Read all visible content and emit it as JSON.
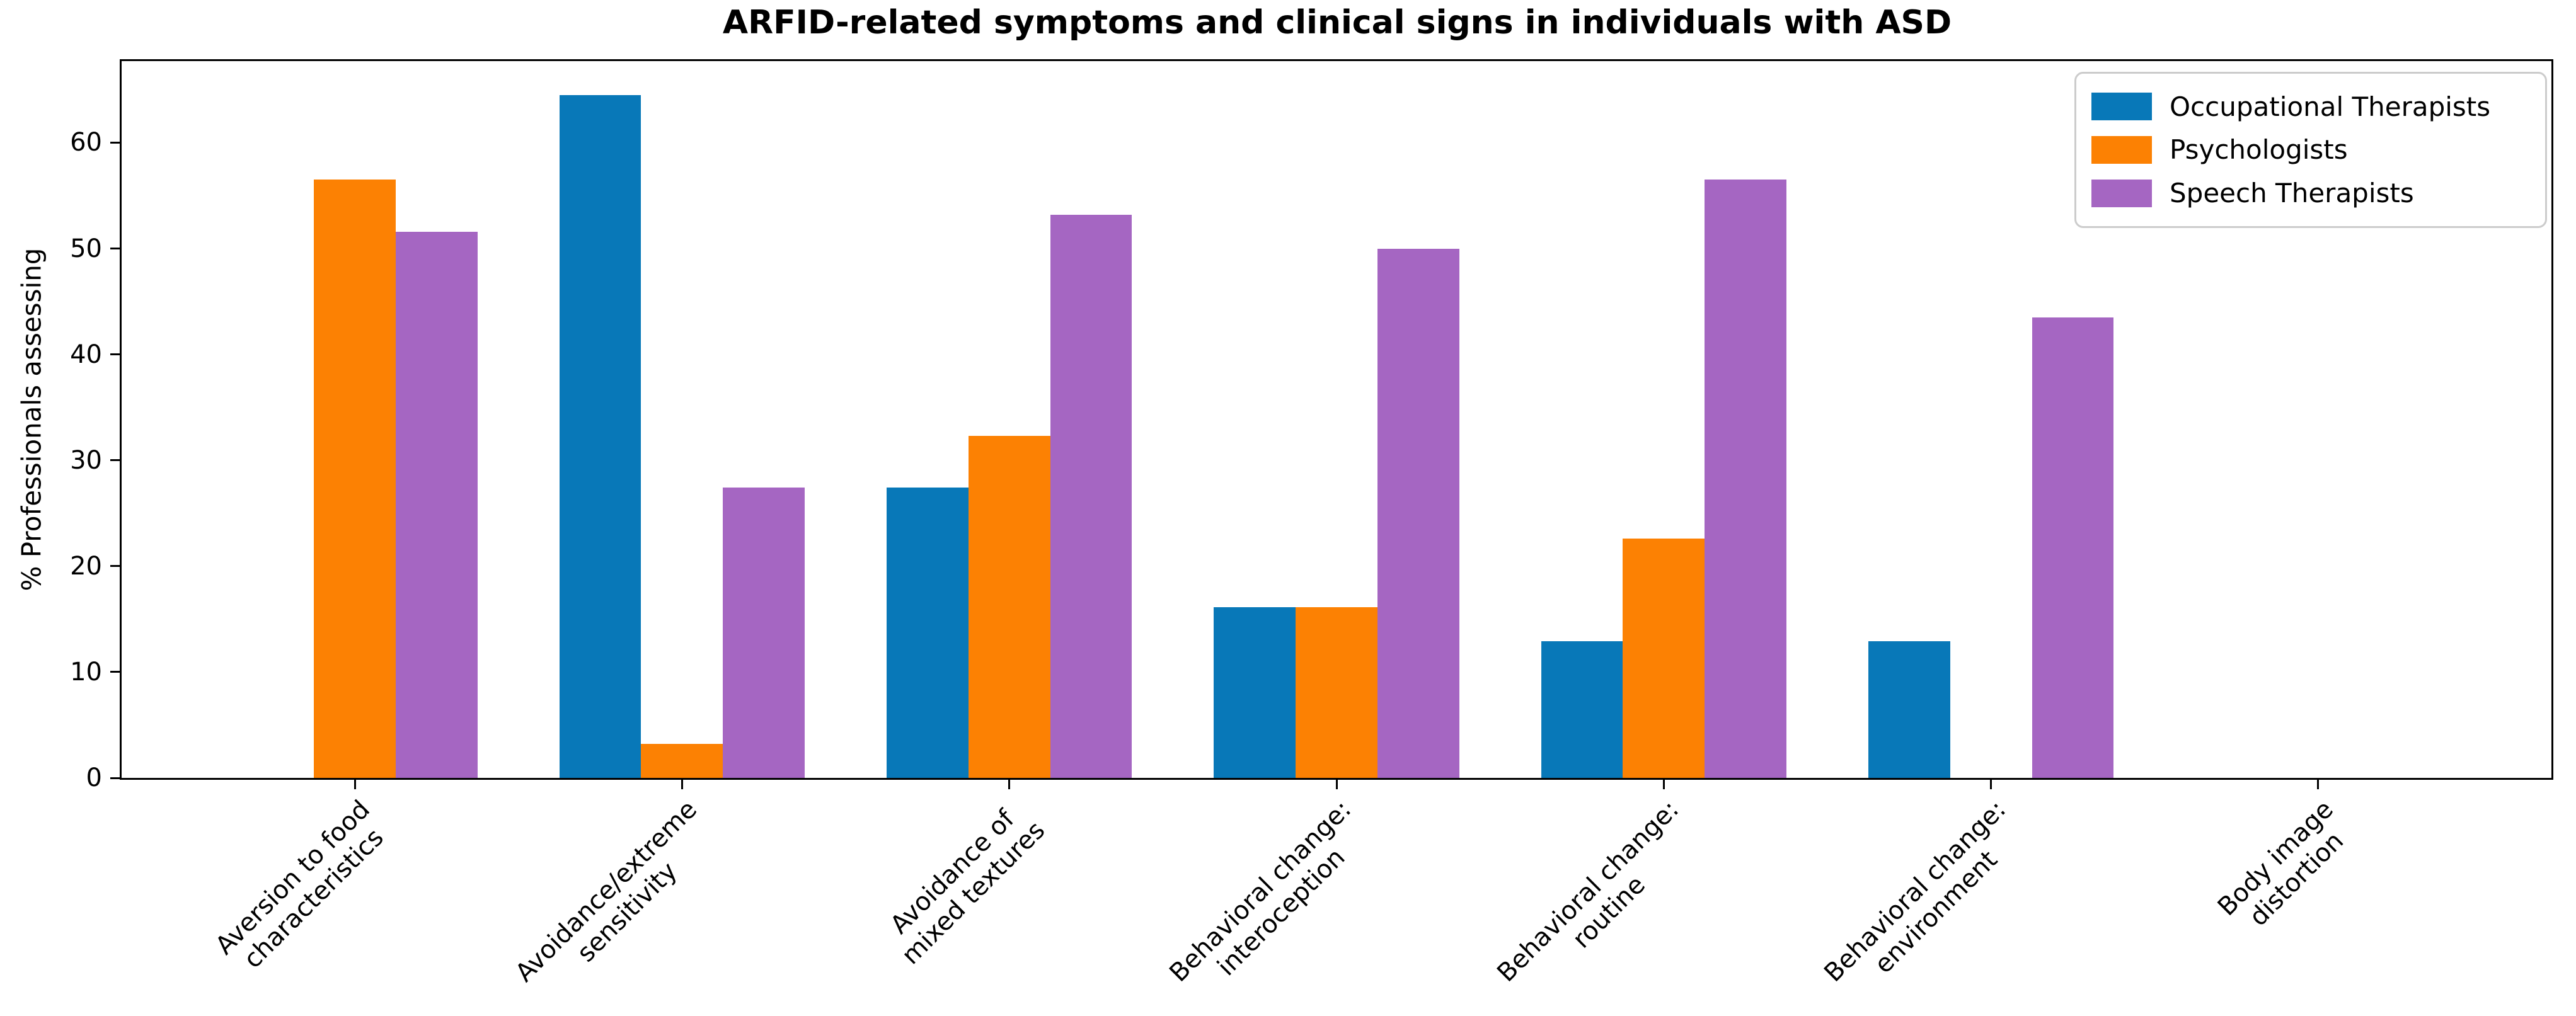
{
  "chart_data": {
    "type": "bar",
    "title": "ARFID-related symptoms and clinical signs in individuals with ASD",
    "xlabel": "",
    "ylabel": "% Professionals assessing",
    "categories": [
      "Aversion to food\ncharacteristics",
      "Avoidance/extreme\nsensitivity",
      "Avoidance of\nmixed textures",
      "Behavioral change:\ninteroception",
      "Behavioral change:\nroutine",
      "Behavioral change:\nenvironment",
      "Body image\ndistortion"
    ],
    "series": [
      {
        "name": "Occupational Therapists",
        "color": "#0878b8",
        "values": [
          0,
          64.5,
          27.4,
          16.1,
          12.9,
          12.9,
          0
        ]
      },
      {
        "name": "Psychologists",
        "color": "#fc8103",
        "values": [
          56.5,
          3.2,
          32.3,
          16.1,
          22.6,
          0,
          0
        ]
      },
      {
        "name": "Speech Therapists",
        "color": "#a566c2",
        "values": [
          51.6,
          27.4,
          53.2,
          50.0,
          56.5,
          43.5,
          0
        ]
      }
    ],
    "yticks": [
      0,
      10,
      20,
      30,
      40,
      50,
      60
    ],
    "ylim": [
      0,
      67.7
    ],
    "grid": false,
    "legend_position": "upper right",
    "axis_color": "#000000",
    "background_color": "#ffffff"
  }
}
